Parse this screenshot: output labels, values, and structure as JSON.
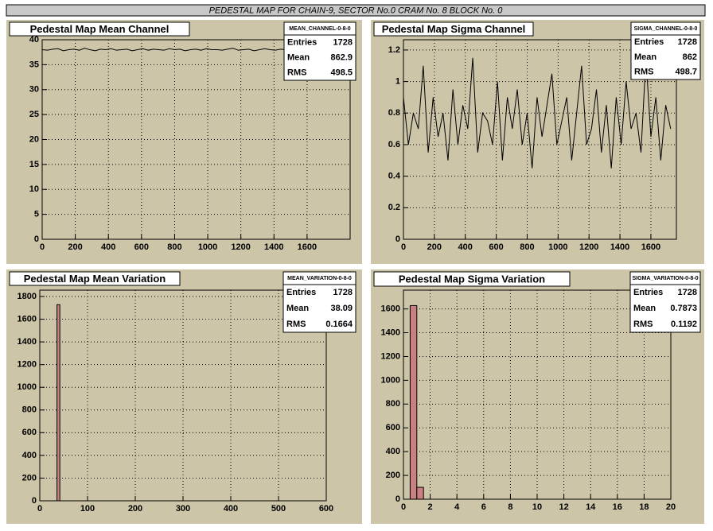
{
  "page_title": "PEDESTAL MAP FOR CHAIN-9, SECTOR No.0 CRAM No. 8 BLOCK No. 0",
  "stats_labels": [
    "Entries",
    "Mean",
    "RMS"
  ],
  "chart_data": [
    {
      "type": "line",
      "title": "Pedestal Map Mean Channel",
      "x": [
        0,
        32,
        64,
        96,
        128,
        160,
        192,
        224,
        256,
        288,
        320,
        352,
        384,
        416,
        448,
        480,
        512,
        544,
        576,
        608,
        640,
        672,
        704,
        736,
        768,
        800,
        832,
        864,
        896,
        928,
        960,
        992,
        1024,
        1056,
        1088,
        1120,
        1152,
        1184,
        1216,
        1248,
        1280,
        1312,
        1344,
        1376,
        1408,
        1440,
        1472,
        1504,
        1536,
        1568,
        1600,
        1632,
        1664,
        1696,
        1728
      ],
      "values": [
        38.0,
        37.9,
        38.1,
        38.2,
        37.8,
        38.0,
        38.1,
        37.9,
        38.3,
        38.0,
        37.8,
        38.1,
        38.0,
        38.2,
        37.9,
        38.0,
        38.1,
        37.8,
        38.0,
        38.2,
        37.9,
        38.1,
        38.0,
        37.9,
        38.2,
        38.0,
        38.1,
        37.8,
        38.0,
        38.1,
        37.9,
        38.2,
        38.0,
        38.0,
        37.9,
        38.1,
        38.3,
        37.9,
        38.0,
        38.1,
        37.8,
        38.0,
        38.2,
        38.0,
        37.9,
        38.1,
        38.0,
        37.8,
        38.2,
        38.0,
        38.1,
        37.9,
        38.0,
        38.1,
        38.0
      ],
      "color": "#000000",
      "xlim": [
        0,
        1860
      ],
      "xticks": [
        0,
        200,
        400,
        600,
        800,
        1000,
        1200,
        1400,
        1600
      ],
      "ylim": [
        0,
        40
      ],
      "yticks": [
        0,
        5,
        10,
        15,
        20,
        25,
        30,
        35,
        40
      ],
      "grid": true,
      "stats": {
        "name": "MEAN_CHANNEL-0-8-0",
        "entries": 1728,
        "mean": 862.9,
        "rms": 498.5
      }
    },
    {
      "type": "line",
      "title": "Pedestal Map Sigma Channel",
      "x": [
        0,
        32,
        64,
        96,
        128,
        160,
        192,
        224,
        256,
        288,
        320,
        352,
        384,
        416,
        448,
        480,
        512,
        544,
        576,
        608,
        640,
        672,
        704,
        736,
        768,
        800,
        832,
        864,
        896,
        928,
        960,
        992,
        1024,
        1056,
        1088,
        1120,
        1152,
        1184,
        1216,
        1248,
        1280,
        1312,
        1344,
        1376,
        1408,
        1440,
        1472,
        1504,
        1536,
        1568,
        1600,
        1632,
        1664,
        1696,
        1728
      ],
      "values": [
        0.9,
        0.6,
        0.8,
        0.7,
        1.1,
        0.55,
        0.9,
        0.65,
        0.8,
        0.5,
        0.95,
        0.6,
        0.85,
        0.7,
        1.15,
        0.55,
        0.8,
        0.75,
        0.6,
        1.0,
        0.5,
        0.9,
        0.7,
        0.95,
        0.6,
        0.8,
        0.45,
        0.9,
        0.65,
        0.85,
        1.05,
        0.6,
        0.75,
        0.9,
        0.5,
        0.8,
        1.1,
        0.6,
        0.7,
        0.95,
        0.55,
        0.85,
        0.45,
        0.9,
        0.6,
        1.0,
        0.7,
        0.8,
        0.55,
        1.15,
        0.65,
        0.9,
        0.5,
        0.85,
        0.7
      ],
      "color": "#000000",
      "xlim": [
        0,
        1765
      ],
      "xticks": [
        0,
        200,
        400,
        600,
        800,
        1000,
        1200,
        1400,
        1600
      ],
      "ylim": [
        0,
        1.265
      ],
      "yticks": [
        0,
        0.2,
        0.4,
        0.6,
        0.8,
        1,
        1.2
      ],
      "grid": true,
      "stats": {
        "name": "SIGMA_CHANNEL-0-8-0",
        "entries": 1728,
        "mean": 862,
        "rms": 498.7
      }
    },
    {
      "type": "histogram",
      "title": "Pedestal Map Mean Variation",
      "bins": [
        36,
        42
      ],
      "values": [
        1728
      ],
      "color": "#c88080",
      "xlim": [
        0,
        600
      ],
      "xticks": [
        0,
        100,
        200,
        300,
        400,
        500,
        600
      ],
      "ylim": [
        0,
        1856
      ],
      "yticks": [
        0,
        200,
        400,
        600,
        800,
        1000,
        1200,
        1400,
        1600,
        1800
      ],
      "grid": true,
      "stats": {
        "name": "MEAN_VARIATION-0-8-0",
        "entries": 1728,
        "mean": 38.09,
        "rms": 0.1664
      }
    },
    {
      "type": "histogram",
      "title": "Pedestal Map Sigma Variation",
      "bins": [
        0.5,
        1.0,
        1.5
      ],
      "values": [
        1628,
        100
      ],
      "color": "#c88080",
      "xlim": [
        0,
        20
      ],
      "xticks": [
        0,
        2,
        4,
        6,
        8,
        10,
        12,
        14,
        16,
        18,
        20
      ],
      "ylim": [
        0,
        1758
      ],
      "yticks": [
        0,
        200,
        400,
        600,
        800,
        1000,
        1200,
        1400,
        1600
      ],
      "grid": true,
      "stats": {
        "name": "SIGMA_VARIATION-0-8-0",
        "entries": 1728,
        "mean": 0.7873,
        "rms": 0.1192
      }
    }
  ]
}
